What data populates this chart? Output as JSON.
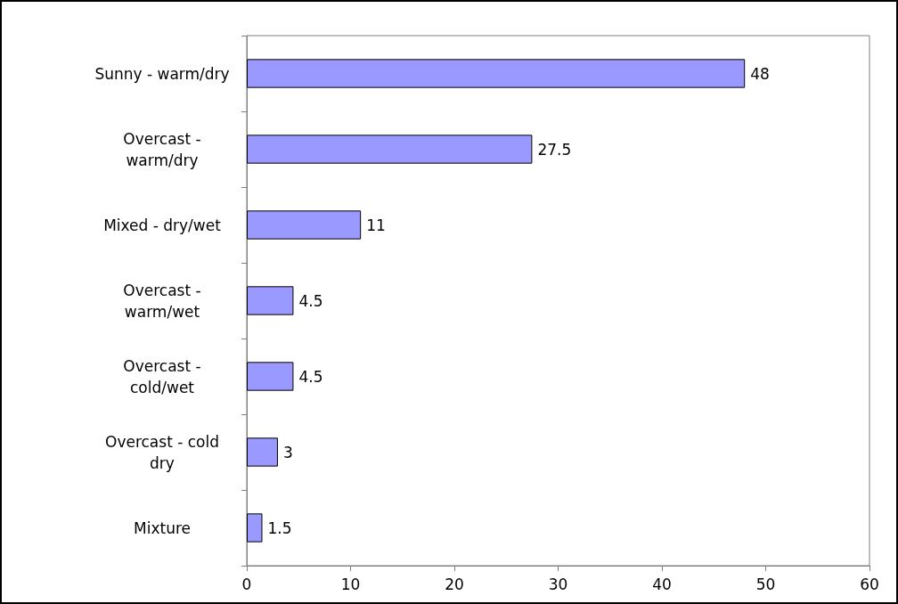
{
  "chart_data": {
    "type": "bar",
    "orientation": "horizontal",
    "categories": [
      "Sunny - warm/dry",
      "Overcast - warm/dry",
      "Mixed - dry/wet",
      "Overcast - warm/wet",
      "Overcast - cold/wet",
      "Overcast - cold dry",
      "Mixture"
    ],
    "values": [
      48,
      27.5,
      11,
      4.5,
      4.5,
      3,
      1.5
    ],
    "color": "#9999ff",
    "xlim": [
      0,
      60
    ],
    "xticks": [
      0,
      10,
      20,
      30,
      40,
      50,
      60
    ],
    "data_labels": true,
    "grid": false
  }
}
